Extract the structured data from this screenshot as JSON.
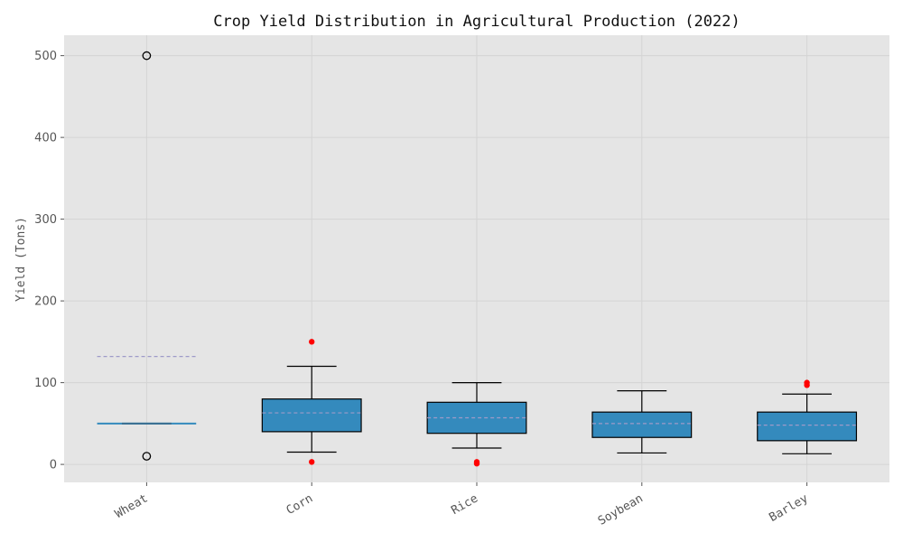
{
  "chart_data": {
    "type": "box",
    "title": "Crop Yield Distribution in Agricultural Production (2022)",
    "xlabel": "",
    "ylabel": "Yield (Tons)",
    "ylim": [
      -22,
      525
    ],
    "yticks": [
      0,
      100,
      200,
      300,
      400,
      500
    ],
    "grid": true,
    "colors": {
      "plot_background": "#e5e5e5",
      "grid": "#d4d4d4",
      "box_fill": "#348abd",
      "box_edge": "#000000",
      "whisker": "#000000",
      "mean_line": "#9e9ac8",
      "outlier": "#ff0000",
      "wheat_line": "#348abd"
    },
    "categories": [
      "Wheat",
      "Corn",
      "Rice",
      "Soybean",
      "Barley"
    ],
    "boxes": [
      {
        "category": "Wheat",
        "min": 50,
        "q1": 50,
        "median": 50,
        "q3": 50,
        "max": 50,
        "mean": 132,
        "outliers": [
          500,
          10
        ],
        "outlier_style": "hollow"
      },
      {
        "category": "Corn",
        "min": 15,
        "q1": 40,
        "median": 63,
        "q3": 80,
        "max": 120,
        "mean": 63,
        "outliers": [
          150,
          3
        ],
        "outlier_style": "filled"
      },
      {
        "category": "Rice",
        "min": 20,
        "q1": 38,
        "median": 57,
        "q3": 76,
        "max": 100,
        "mean": 57,
        "outliers": [
          3,
          1
        ],
        "outlier_style": "filled"
      },
      {
        "category": "Soybean",
        "min": 14,
        "q1": 33,
        "median": 50,
        "q3": 64,
        "max": 90,
        "mean": 50,
        "outliers": [],
        "outlier_style": "filled"
      },
      {
        "category": "Barley",
        "min": 13,
        "q1": 29,
        "median": 48,
        "q3": 64,
        "max": 86,
        "mean": 48,
        "outliers": [
          100,
          97
        ],
        "outlier_style": "filled"
      }
    ]
  }
}
